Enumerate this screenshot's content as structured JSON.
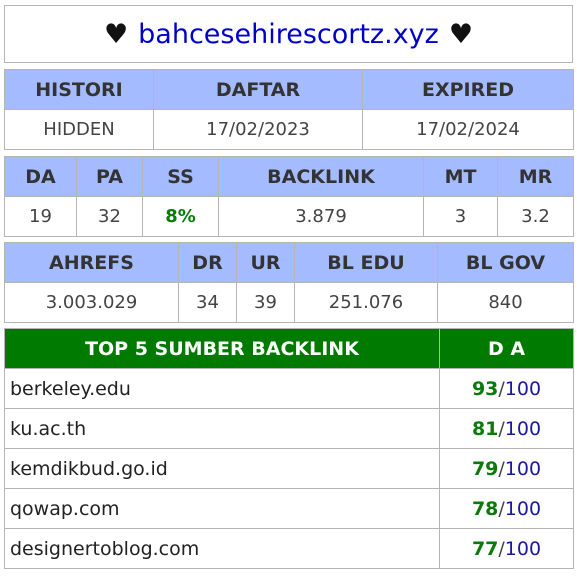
{
  "header": {
    "heart_left": "♥",
    "site": "bahcesehirescortz.xyz",
    "heart_right": "♥"
  },
  "domain_info": {
    "headers": [
      "HISTORI",
      "DAFTAR",
      "EXPIRED"
    ],
    "values": [
      "HIDDEN",
      "17/02/2023",
      "17/02/2024"
    ]
  },
  "moz_metrics": {
    "headers": [
      "DA",
      "PA",
      "SS",
      "BACKLINK",
      "MT",
      "MR"
    ],
    "values": [
      "19",
      "32",
      "8%",
      "3.879",
      "3",
      "3.2"
    ]
  },
  "ahrefs_metrics": {
    "headers": [
      "AHREFS",
      "DR",
      "UR",
      "BL EDU",
      "BL GOV"
    ],
    "values": [
      "3.003.029",
      "34",
      "39",
      "251.076",
      "840"
    ]
  },
  "top_sources": {
    "header_label": "TOP 5 SUMBER BACKLINK",
    "da_header": "D A",
    "separator": "/",
    "max": "100",
    "rows": [
      {
        "domain": "berkeley.edu",
        "da": "93"
      },
      {
        "domain": "ku.ac.th",
        "da": "81"
      },
      {
        "domain": "kemdikbud.go.id",
        "da": "79"
      },
      {
        "domain": "qowap.com",
        "da": "78"
      },
      {
        "domain": "designertoblog.com",
        "da": "77"
      }
    ]
  },
  "colors": {
    "header_blue": "#a4bcff",
    "header_green": "#007a00",
    "value_green": "#0a7a0a",
    "link_blue": "#0000cc"
  }
}
